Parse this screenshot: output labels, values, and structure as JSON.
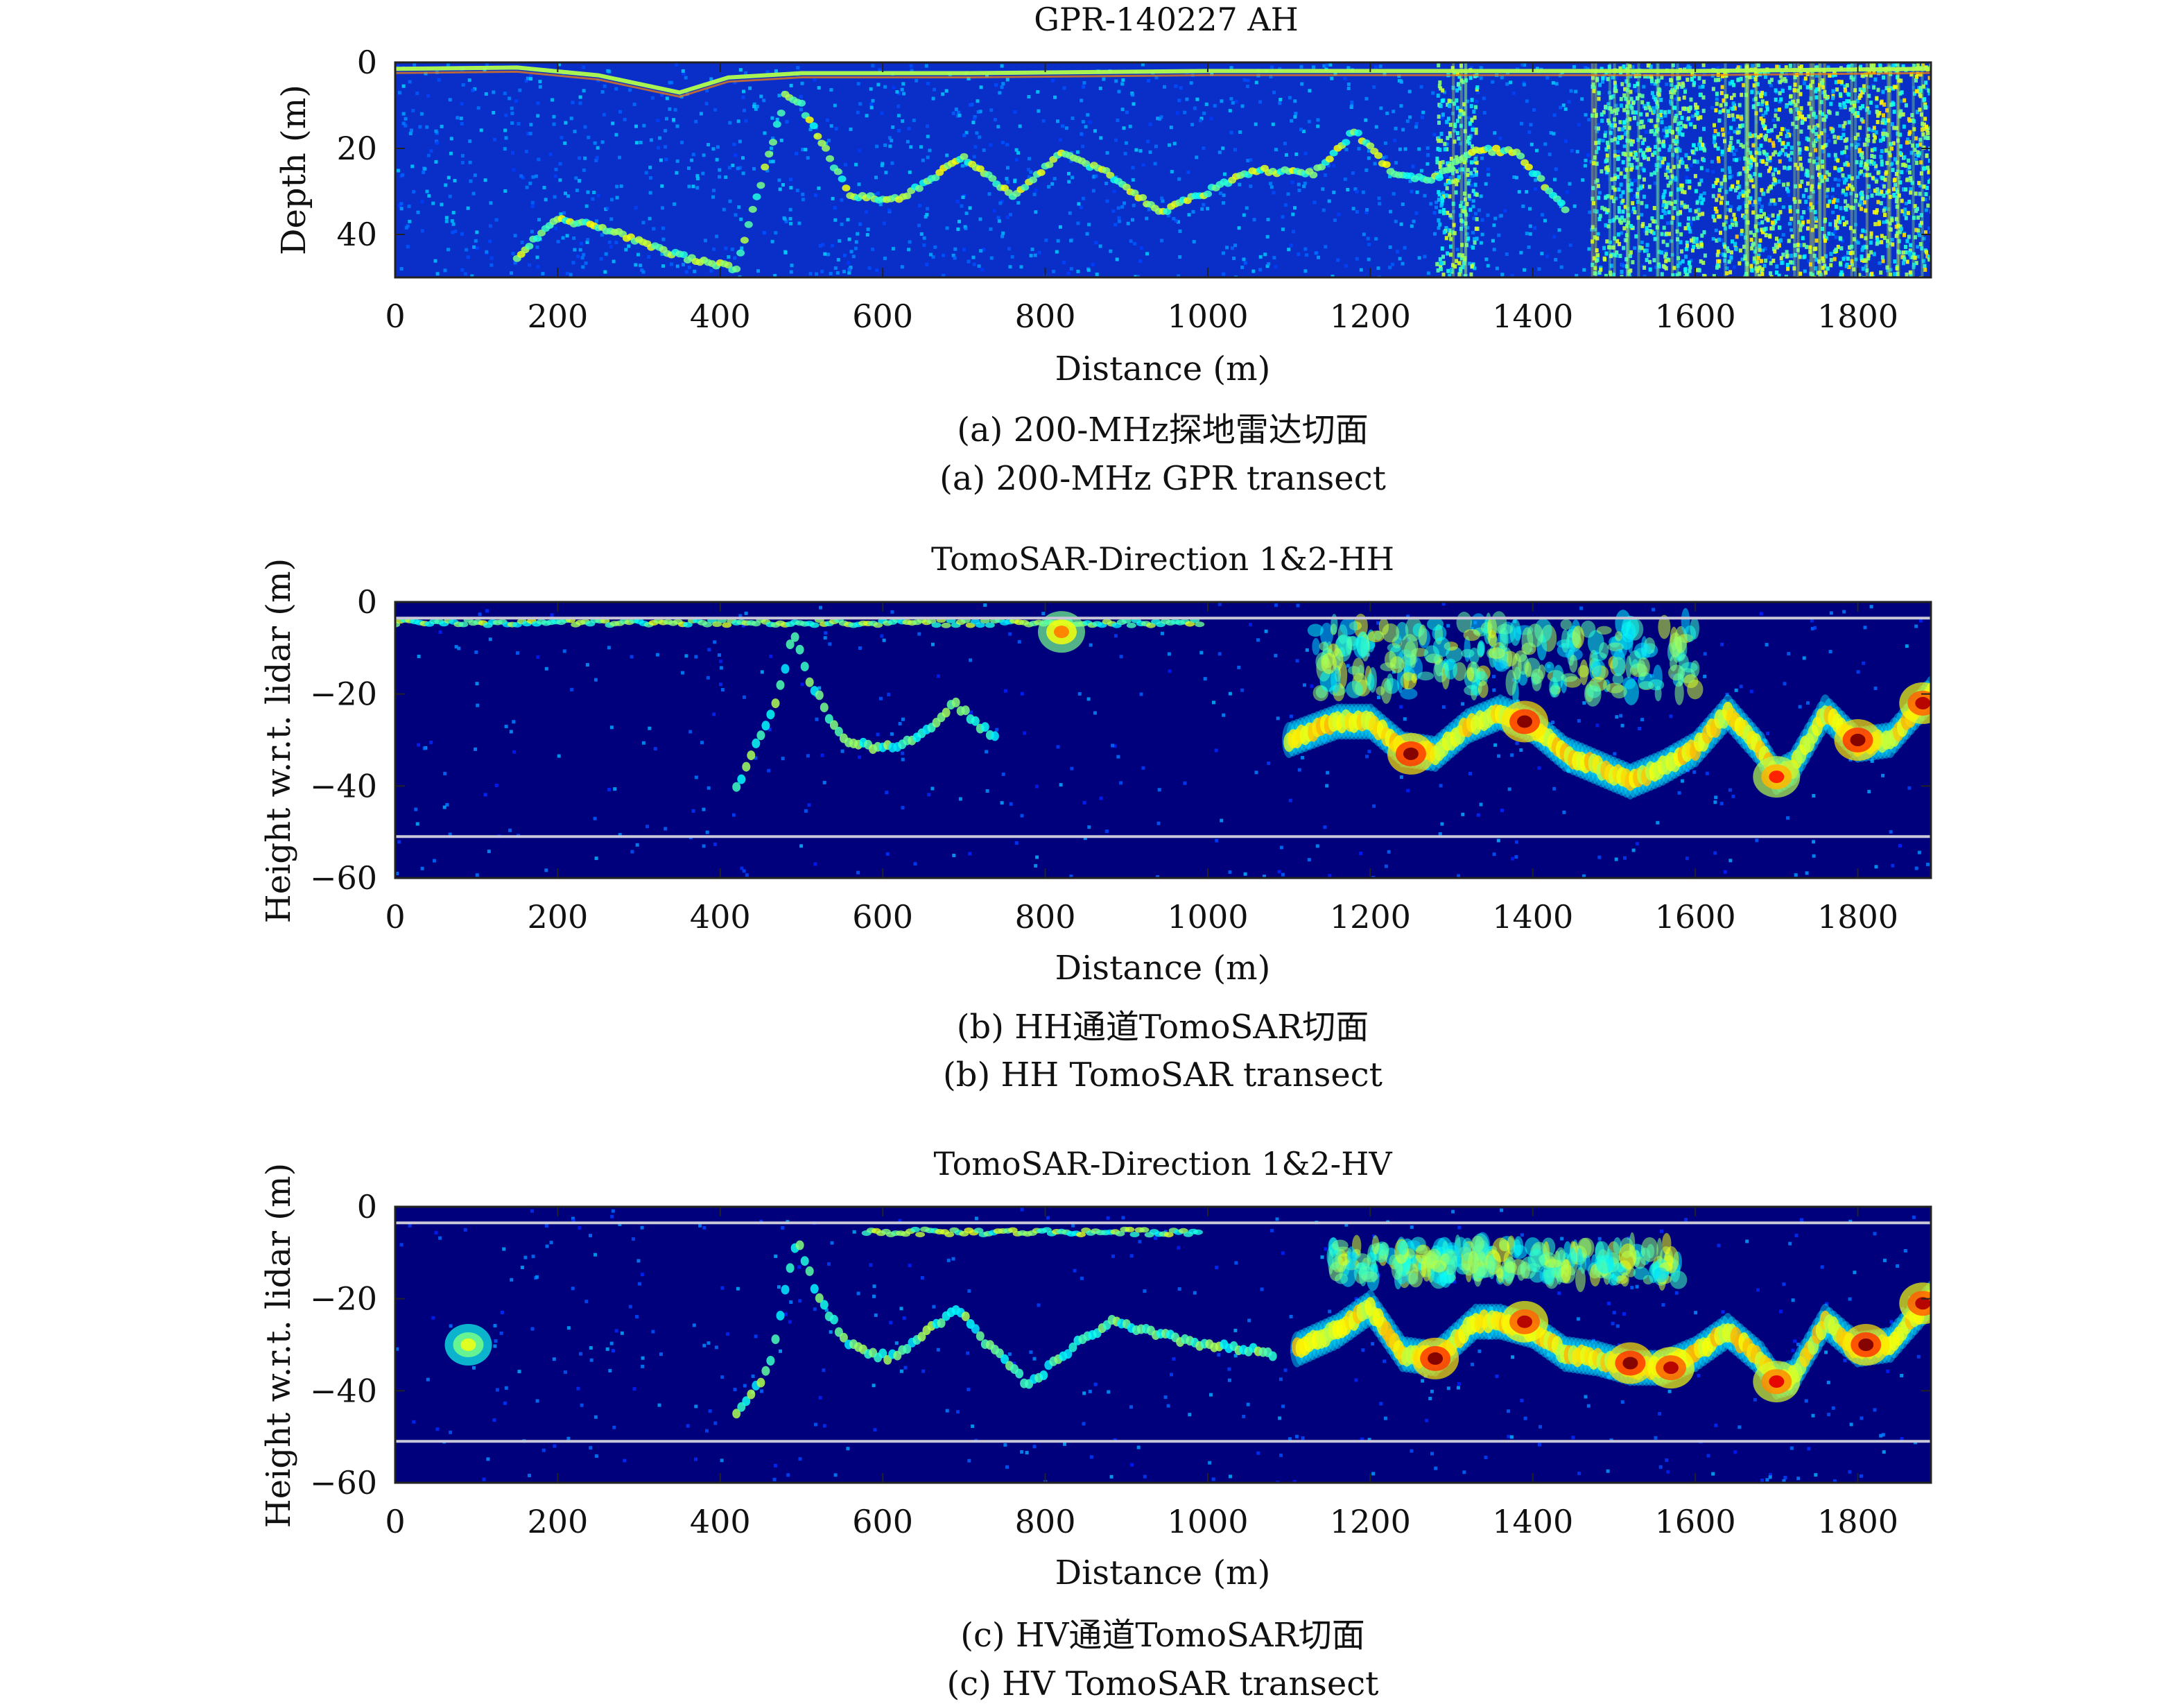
{
  "figure": {
    "panels": [
      {
        "title": "GPR-140227 AH",
        "caption_cn": "(a) 200-MHz探地雷达切面",
        "caption_en": "(a) 200-MHz GPR transect"
      },
      {
        "title": "TomoSAR-Direction 1&2-HH",
        "caption_cn": "(b) HH通道TomoSAR切面",
        "caption_en": "(b) HH TomoSAR transect"
      },
      {
        "title": "TomoSAR-Direction 1&2-HV",
        "caption_cn": "(c) HV通道TomoSAR切面",
        "caption_en": "(c) HV TomoSAR transect"
      }
    ]
  },
  "chart_data": [
    {
      "type": "heatmap",
      "title": "GPR-140227 AH",
      "xlabel": "Distance (m)",
      "ylabel": "Depth (m)",
      "xlim": [
        0,
        1890
      ],
      "ylim": [
        0,
        50
      ],
      "y_inverted": true,
      "xticks": [
        0,
        200,
        400,
        600,
        800,
        1000,
        1200,
        1400,
        1600,
        1800
      ],
      "xtick_labels": [
        "0",
        "200",
        "400",
        "600",
        "800",
        "1000",
        "1200",
        "1400",
        "1600",
        "1800"
      ],
      "yticks": [
        0,
        20,
        40
      ],
      "ytick_labels": [
        "0",
        "20",
        "40"
      ],
      "colormap": "jet",
      "background_color": "#0a2fc8",
      "surface_line": {
        "x": [
          0,
          150,
          250,
          350,
          410,
          500,
          700,
          1000,
          1300,
          1600,
          1890
        ],
        "y": [
          1.5,
          1.2,
          3.0,
          7.0,
          3.5,
          2.5,
          2.5,
          2.0,
          2.0,
          2.0,
          1.5
        ]
      },
      "reflector": {
        "x": [
          150,
          200,
          280,
          350,
          420,
          480,
          500,
          560,
          620,
          700,
          760,
          820,
          880,
          940,
          1000,
          1060,
          1130,
          1180,
          1230,
          1280,
          1330,
          1380,
          1440
        ],
        "y": [
          45,
          36,
          40,
          45,
          48,
          8,
          10,
          31,
          32,
          22,
          31,
          21,
          26,
          35,
          30,
          25,
          26,
          16,
          26,
          27,
          20,
          21,
          34
        ]
      },
      "noise_bands": [
        [
          1280,
          1330
        ],
        [
          1470,
          1610
        ],
        [
          1620,
          1890
        ]
      ]
    },
    {
      "type": "heatmap",
      "title": "TomoSAR-Direction 1&2-HH",
      "xlabel": "Distance (m)",
      "ylabel": "Height w.r.t. lidar (m)",
      "xlim": [
        0,
        1890
      ],
      "ylim": [
        -60,
        0
      ],
      "xticks": [
        0,
        200,
        400,
        600,
        800,
        1000,
        1200,
        1400,
        1600,
        1800
      ],
      "xtick_labels": [
        "0",
        "200",
        "400",
        "600",
        "800",
        "1000",
        "1200",
        "1400",
        "1600",
        "1800"
      ],
      "yticks": [
        0,
        -20,
        -40,
        -60
      ],
      "ytick_labels": [
        "0",
        "−20",
        "−40",
        "−60"
      ],
      "colormap": "jet",
      "background_color": "#00007d",
      "reference_lines_y": [
        -3.5,
        -51
      ],
      "top_echo": {
        "x": [
          0,
          990
        ],
        "y": -4.5
      },
      "bright_spots": [
        [
          820,
          -6.5,
          0.75
        ]
      ],
      "weak_trace": {
        "x": [
          420,
          470,
          490,
          510,
          550,
          600,
          640,
          690,
          740
        ],
        "y": [
          -40,
          -22,
          -6,
          -17,
          -30,
          -32,
          -30,
          -22,
          -30
        ]
      },
      "strong_trace": {
        "x": [
          1100,
          1160,
          1200,
          1240,
          1280,
          1320,
          1360,
          1400,
          1440,
          1480,
          1520,
          1560,
          1600,
          1640,
          1680,
          1700,
          1720,
          1760,
          1800,
          1840,
          1890
        ],
        "y": [
          -30,
          -26,
          -26,
          -32,
          -33,
          -27,
          -24,
          -27,
          -33,
          -36,
          -39,
          -36,
          -32,
          -24,
          -32,
          -38,
          -36,
          -24,
          -31,
          -30,
          -20
        ]
      },
      "hot_spots": [
        [
          1250,
          -33,
          1.0
        ],
        [
          1390,
          -26,
          1.0
        ],
        [
          1800,
          -30,
          1.0
        ],
        [
          1880,
          -22,
          0.95
        ],
        [
          1700,
          -38,
          0.85
        ]
      ],
      "canopy_scatter": {
        "x": [
          1130,
          1600
        ],
        "y": [
          -4,
          -20
        ]
      }
    },
    {
      "type": "heatmap",
      "title": "TomoSAR-Direction 1&2-HV",
      "xlabel": "Distance (m)",
      "ylabel": "Height w.r.t. lidar (m)",
      "xlim": [
        0,
        1890
      ],
      "ylim": [
        -60,
        0
      ],
      "xticks": [
        0,
        200,
        400,
        600,
        800,
        1000,
        1200,
        1400,
        1600,
        1800
      ],
      "xtick_labels": [
        "0",
        "200",
        "400",
        "600",
        "800",
        "1000",
        "1200",
        "1400",
        "1600",
        "1800"
      ],
      "yticks": [
        0,
        -20,
        -40,
        -60
      ],
      "ytick_labels": [
        "0",
        "−20",
        "−40",
        "−60"
      ],
      "colormap": "jet",
      "background_color": "#00007d",
      "reference_lines_y": [
        -3.5,
        -51
      ],
      "top_echo": {
        "x": [
          580,
          990
        ],
        "y": -5.5
      },
      "bright_spots": [
        [
          90,
          -30,
          0.6
        ]
      ],
      "weak_trace": {
        "x": [
          420,
          460,
          495,
          520,
          560,
          610,
          650,
          690,
          730,
          780,
          830,
          880,
          940,
          1000,
          1080
        ],
        "y": [
          -45,
          -35,
          -6,
          -20,
          -30,
          -33,
          -28,
          -22,
          -30,
          -39,
          -31,
          -25,
          -28,
          -30,
          -32
        ]
      },
      "strong_trace": {
        "x": [
          1110,
          1160,
          1200,
          1240,
          1280,
          1330,
          1360,
          1400,
          1440,
          1480,
          1520,
          1560,
          1600,
          1640,
          1680,
          1700,
          1720,
          1760,
          1800,
          1840,
          1890
        ],
        "y": [
          -31,
          -27,
          -22,
          -32,
          -33,
          -25,
          -25,
          -27,
          -32,
          -33,
          -35,
          -35,
          -32,
          -27,
          -33,
          -38,
          -37,
          -25,
          -31,
          -30,
          -20
        ]
      },
      "hot_spots": [
        [
          1280,
          -33,
          1.0
        ],
        [
          1390,
          -25,
          0.95
        ],
        [
          1520,
          -34,
          1.0
        ],
        [
          1570,
          -35,
          0.95
        ],
        [
          1700,
          -38,
          0.9
        ],
        [
          1810,
          -30,
          1.0
        ],
        [
          1880,
          -21,
          0.95
        ]
      ],
      "canopy_scatter": {
        "x": [
          1150,
          1580
        ],
        "y": [
          -8,
          -16
        ]
      }
    }
  ]
}
